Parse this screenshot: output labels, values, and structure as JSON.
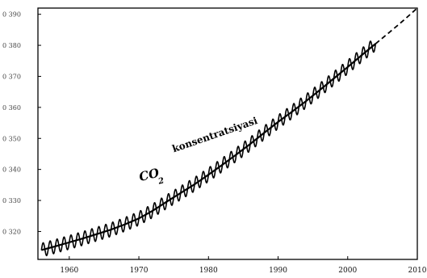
{
  "chart_data": {
    "type": "line",
    "title": "",
    "xlabel": "",
    "ylabel": "",
    "xlim": [
      1955.5,
      2010
    ],
    "ylim": [
      311,
      392
    ],
    "grid": false,
    "x_ticks": [
      1960,
      1970,
      1980,
      1990,
      2000,
      2010
    ],
    "x_tick_labels": [
      "1960",
      "1970",
      "1980",
      "1990",
      "2000",
      "2010"
    ],
    "y_ticks": [
      390,
      380,
      370,
      360,
      350,
      340,
      330,
      320
    ],
    "y_tick_labels": [
      "0 390",
      "0 380",
      "0 370",
      "0 360",
      "0 350",
      "0 340",
      "0 330",
      "0 320"
    ],
    "annotations": [
      {
        "text": "CO",
        "x": 1970.2,
        "y": 336.2
      },
      {
        "text": "2",
        "x": 1972.9,
        "y": 335.3
      },
      {
        "text": "konsentratsiyasi",
        "x": 1975.0,
        "y": 345.5
      }
    ],
    "series": [
      {
        "style": "solid-seasonal",
        "x": [
          1956,
          1958,
          1960,
          1962,
          1964,
          1966,
          1968,
          1970,
          1972,
          1974,
          1976,
          1978,
          1980,
          1982,
          1984,
          1986,
          1988,
          1990,
          1992,
          1994,
          1996,
          1998,
          2000,
          2002,
          2004
        ],
        "y": [
          314.0,
          315.2,
          316.5,
          317.8,
          319.2,
          320.6,
          322.3,
          324.2,
          326.7,
          329.6,
          332.4,
          335.2,
          338.3,
          341.5,
          344.8,
          348.2,
          351.8,
          355.3,
          358.6,
          362.0,
          365.6,
          369.3,
          373.0,
          376.8,
          380.5
        ],
        "seasonal_amplitude": 2.2
      },
      {
        "style": "dashed",
        "x": [
          2004,
          2006,
          2008,
          2010
        ],
        "y": [
          380.5,
          384.2,
          388.0,
          392.0
        ]
      }
    ]
  }
}
